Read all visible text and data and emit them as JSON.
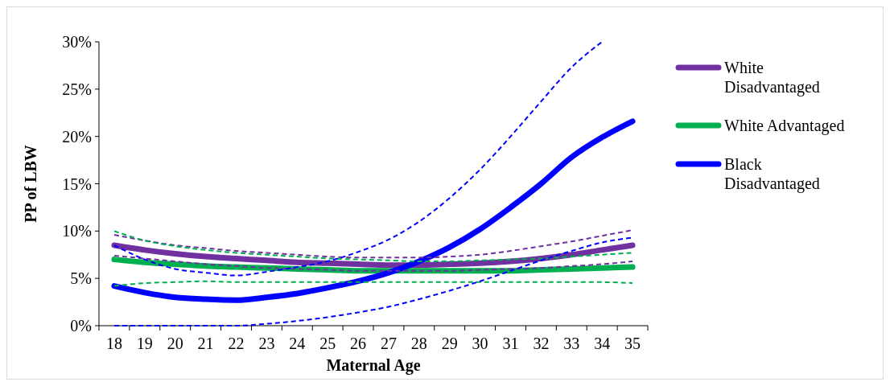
{
  "chart_data": {
    "type": "line",
    "xlabel": "Maternal Age",
    "ylabel": "PP of LBW",
    "categories": [
      "18",
      "19",
      "20",
      "21",
      "22",
      "23",
      "24",
      "25",
      "26",
      "27",
      "28",
      "29",
      "30",
      "31",
      "32",
      "33",
      "34",
      "35"
    ],
    "ylim": [
      0,
      30
    ],
    "yticks": [
      {
        "value": 0,
        "label": "0%"
      },
      {
        "value": 5,
        "label": "5%"
      },
      {
        "value": 10,
        "label": "10%"
      },
      {
        "value": 15,
        "label": "15%"
      },
      {
        "value": 20,
        "label": "20%"
      },
      {
        "value": 25,
        "label": "25%"
      },
      {
        "value": 30,
        "label": "30%"
      }
    ],
    "grid": false,
    "legend": "right",
    "marker": "none",
    "series": [
      {
        "name": "White Disadvantaged",
        "color": "#7030a0",
        "line_style": "solid",
        "values": [
          8.5,
          8.0,
          7.6,
          7.3,
          7.1,
          6.9,
          6.7,
          6.6,
          6.5,
          6.4,
          6.4,
          6.5,
          6.6,
          6.8,
          7.1,
          7.5,
          8.0,
          8.5
        ]
      },
      {
        "name": "White Advantaged",
        "color": "#00b050",
        "line_style": "solid",
        "values": [
          7.0,
          6.7,
          6.5,
          6.3,
          6.2,
          6.1,
          6.0,
          5.9,
          5.8,
          5.8,
          5.8,
          5.8,
          5.8,
          5.8,
          5.9,
          6.0,
          6.1,
          6.2
        ]
      },
      {
        "name": "Black Disadvantaged",
        "color": "#0000ff",
        "line_style": "solid",
        "values": [
          4.2,
          3.5,
          3.0,
          2.8,
          2.7,
          3.0,
          3.4,
          4.0,
          4.7,
          5.6,
          6.8,
          8.3,
          10.2,
          12.5,
          15.0,
          17.8,
          19.9,
          21.6
        ]
      },
      {
        "color": "#7030a0",
        "line_style": "dashed",
        "values": [
          9.6,
          9.0,
          8.5,
          8.2,
          7.9,
          7.7,
          7.5,
          7.3,
          7.2,
          7.2,
          7.2,
          7.3,
          7.5,
          7.9,
          8.4,
          8.9,
          9.5,
          10.1
        ]
      },
      {
        "color": "#7030a0",
        "line_style": "dashed",
        "values": [
          7.4,
          7.1,
          6.8,
          6.5,
          6.3,
          6.1,
          6.0,
          5.9,
          5.8,
          5.8,
          5.8,
          5.8,
          5.9,
          6.0,
          6.1,
          6.3,
          6.5,
          6.8
        ]
      },
      {
        "color": "#00b050",
        "line_style": "dashed",
        "values": [
          10.0,
          9.0,
          8.4,
          8.0,
          7.7,
          7.5,
          7.3,
          7.1,
          7.0,
          6.9,
          6.8,
          6.8,
          6.9,
          7.0,
          7.1,
          7.3,
          7.5,
          7.7
        ]
      },
      {
        "color": "#00b050",
        "line_style": "dashed",
        "values": [
          4.2,
          4.5,
          4.6,
          4.7,
          4.6,
          4.6,
          4.6,
          4.6,
          4.6,
          4.6,
          4.6,
          4.6,
          4.6,
          4.6,
          4.6,
          4.6,
          4.6,
          4.5
        ]
      },
      {
        "color": "#0000ff",
        "line_style": "dashed",
        "values": [
          8.5,
          7.0,
          6.0,
          5.6,
          5.3,
          5.7,
          6.2,
          6.8,
          7.8,
          9.1,
          11.0,
          13.5,
          16.5,
          20.0,
          23.7,
          27.3,
          30.0,
          null
        ]
      },
      {
        "color": "#0000ff",
        "line_style": "dashed",
        "values": [
          0,
          0,
          0,
          0,
          0,
          0.2,
          0.5,
          0.9,
          1.4,
          2.0,
          2.8,
          3.7,
          4.7,
          5.8,
          6.9,
          7.9,
          8.8,
          9.3
        ]
      }
    ]
  }
}
